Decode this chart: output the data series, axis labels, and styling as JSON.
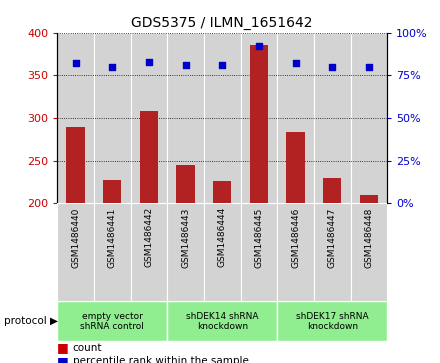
{
  "title": "GDS5375 / ILMN_1651642",
  "samples": [
    "GSM1486440",
    "GSM1486441",
    "GSM1486442",
    "GSM1486443",
    "GSM1486444",
    "GSM1486445",
    "GSM1486446",
    "GSM1486447",
    "GSM1486448"
  ],
  "counts": [
    290,
    227,
    308,
    245,
    226,
    385,
    283,
    230,
    210
  ],
  "percentile_ranks": [
    82,
    80,
    83,
    81,
    81,
    92,
    82,
    80,
    80
  ],
  "count_ylim": [
    200,
    400
  ],
  "count_yticks": [
    200,
    250,
    300,
    350,
    400
  ],
  "percentile_yticks": [
    0,
    25,
    50,
    75,
    100
  ],
  "percentile_labels": [
    "0%",
    "25%",
    "50%",
    "75%",
    "100%"
  ],
  "groups": [
    {
      "label": "empty vector\nshRNA control",
      "start": 0,
      "end": 3,
      "color": "#90EE90"
    },
    {
      "label": "shDEK14 shRNA\nknockdown",
      "start": 3,
      "end": 6,
      "color": "#90EE90"
    },
    {
      "label": "shDEK17 shRNA\nknockdown",
      "start": 6,
      "end": 9,
      "color": "#90EE90"
    }
  ],
  "bar_color": "#B22222",
  "dot_color": "#0000CD",
  "tick_color_left": "#CC0000",
  "tick_color_right": "#0000CD",
  "bg_color": "#D3D3D3",
  "legend_square_color_count": "#CC0000",
  "legend_square_color_pct": "#0000CD"
}
